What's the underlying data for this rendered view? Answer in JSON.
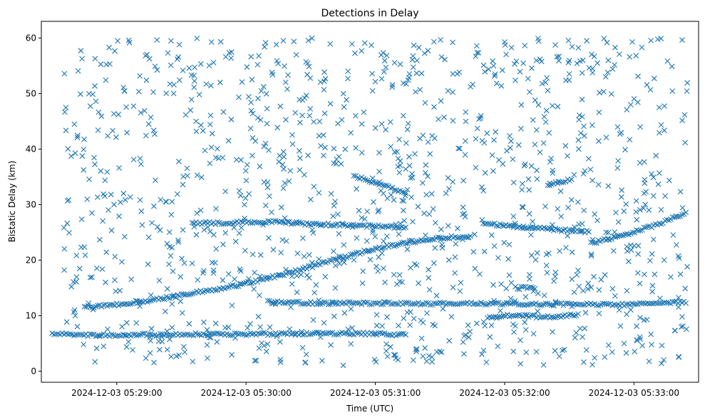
{
  "chart_data": {
    "type": "scatter",
    "title": "Detections in Delay",
    "xlabel": "Time (UTC)",
    "ylabel": "Bistatic Delay (km)",
    "marker": "x",
    "color": "#1f77b4",
    "grid": false,
    "xlim": [
      "2024-12-03 05:28:25",
      "2024-12-03 05:33:30"
    ],
    "ylim": [
      -2,
      63
    ],
    "x_ticks": [
      {
        "value": "2024-12-03 05:29:00",
        "label": "2024-12-03 05:29:00"
      },
      {
        "value": "2024-12-03 05:30:00",
        "label": "2024-12-03 05:30:00"
      },
      {
        "value": "2024-12-03 05:31:00",
        "label": "2024-12-03 05:31:00"
      },
      {
        "value": "2024-12-03 05:32:00",
        "label": "2024-12-03 05:32:00"
      },
      {
        "value": "2024-12-03 05:33:00",
        "label": "2024-12-03 05:33:00"
      }
    ],
    "y_ticks": [
      0,
      10,
      20,
      30,
      40,
      50,
      60
    ],
    "series": [
      {
        "description": "main rising track",
        "points": [
          [
            "2024-12-03 05:28:45",
            11.5
          ],
          [
            "2024-12-03 05:29:00",
            12.0
          ],
          [
            "2024-12-03 05:29:15",
            12.7
          ],
          [
            "2024-12-03 05:29:30",
            13.7
          ],
          [
            "2024-12-03 05:29:45",
            14.7
          ],
          [
            "2024-12-03 05:30:00",
            15.8
          ],
          [
            "2024-12-03 05:30:15",
            17.2
          ],
          [
            "2024-12-03 05:30:30",
            18.8
          ],
          [
            "2024-12-03 05:30:45",
            20.5
          ],
          [
            "2024-12-03 05:31:00",
            22.1
          ],
          [
            "2024-12-03 05:31:15",
            23.2
          ],
          [
            "2024-12-03 05:31:30",
            24.0
          ],
          [
            "2024-12-03 05:31:45",
            24.4
          ]
        ]
      },
      {
        "description": "track 26.5 km",
        "points": [
          [
            "2024-12-03 05:31:50",
            26.6
          ],
          [
            "2024-12-03 05:32:05",
            26.1
          ],
          [
            "2024-12-03 05:32:20",
            25.6
          ],
          [
            "2024-12-03 05:32:40",
            25.1
          ]
        ]
      },
      {
        "description": "late rising track",
        "points": [
          [
            "2024-12-03 05:32:40",
            23.0
          ],
          [
            "2024-12-03 05:32:55",
            24.5
          ],
          [
            "2024-12-03 05:33:10",
            26.3
          ],
          [
            "2024-12-03 05:33:25",
            28.6
          ]
        ]
      },
      {
        "description": "track 7 km",
        "points": [
          [
            "2024-12-03 05:28:30",
            6.7
          ],
          [
            "2024-12-03 05:28:43",
            6.5
          ],
          [
            "2024-12-03 05:30:50",
            6.8
          ],
          [
            "2024-12-03 05:31:15",
            6.6
          ]
        ]
      },
      {
        "description": "descending track ~35 km",
        "points": [
          [
            "2024-12-03 05:30:50",
            35.2
          ],
          [
            "2024-12-03 05:31:00",
            34.0
          ],
          [
            "2024-12-03 05:31:15",
            32.0
          ]
        ]
      },
      {
        "description": "track ~34 km",
        "points": [
          [
            "2024-12-03 05:32:20",
            33.5
          ],
          [
            "2024-12-03 05:32:32",
            34.6
          ]
        ]
      },
      {
        "description": "track ~26 km",
        "points": [
          [
            "2024-12-03 05:29:35",
            26.6
          ],
          [
            "2024-12-03 05:30:12",
            26.9
          ],
          [
            "2024-12-03 05:30:30",
            26.5
          ],
          [
            "2024-12-03 05:31:15",
            25.9
          ]
        ]
      },
      {
        "description": "track ~10 km",
        "points": [
          [
            "2024-12-03 05:31:52",
            9.8
          ],
          [
            "2024-12-03 05:32:05",
            10.1
          ],
          [
            "2024-12-03 05:32:20",
            9.7
          ],
          [
            "2024-12-03 05:32:35",
            10.3
          ]
        ]
      },
      {
        "description": "track ~12 km",
        "points": [
          [
            "2024-12-03 05:30:10",
            12.5
          ],
          [
            "2024-12-03 05:30:20",
            12.3
          ],
          [
            "2024-12-03 05:33:00",
            12.0
          ],
          [
            "2024-12-03 05:33:25",
            12.5
          ]
        ]
      },
      {
        "description": "track ~15 km",
        "points": [
          [
            "2024-12-03 05:32:05",
            15.0
          ],
          [
            "2024-12-03 05:32:15",
            15.0
          ]
        ]
      },
      {
        "description": "background clutter (approx. 1200 detections)",
        "points": "uniform random in range"
      }
    ]
  }
}
